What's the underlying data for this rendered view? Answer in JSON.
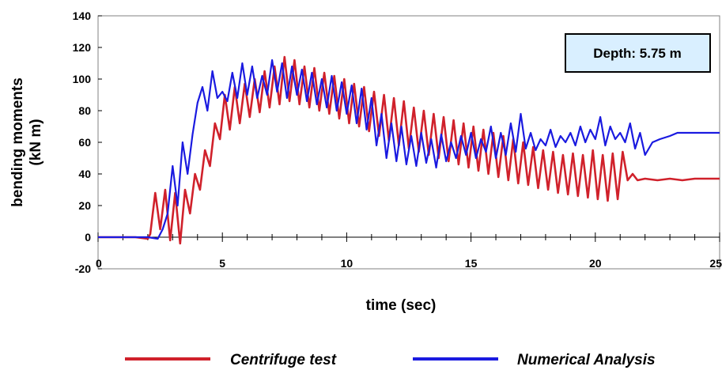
{
  "chart_data": {
    "type": "line",
    "title": "",
    "xlabel": "time (sec)",
    "ylabel_lines": [
      "bending moments",
      "(kN m)"
    ],
    "xlim": [
      0,
      25
    ],
    "ylim": [
      -20,
      140
    ],
    "xticks": [
      0,
      5,
      10,
      15,
      20,
      25
    ],
    "xtick_labels": [
      "0",
      "5",
      "10",
      "15",
      "20",
      "25"
    ],
    "yticks": [
      -20,
      0,
      20,
      40,
      60,
      80,
      100,
      120,
      140
    ],
    "ytick_labels": [
      "-20",
      "0",
      "20",
      "40",
      "60",
      "80",
      "100",
      "120",
      "140"
    ],
    "grid": false,
    "legend_position": "bottom",
    "annotation": "Depth: 5.75 m",
    "colors": {
      "annotation_bg": "#d9efff"
    },
    "series": [
      {
        "name": "Centrifuge test",
        "color": "#d0212b",
        "x": [
          0,
          0.5,
          1,
          1.5,
          2,
          2.1,
          2.3,
          2.5,
          2.7,
          2.9,
          3.1,
          3.3,
          3.5,
          3.7,
          3.9,
          4.1,
          4.3,
          4.5,
          4.7,
          4.9,
          5.1,
          5.3,
          5.5,
          5.7,
          5.9,
          6.1,
          6.3,
          6.5,
          6.7,
          6.9,
          7.1,
          7.3,
          7.5,
          7.7,
          7.9,
          8.1,
          8.3,
          8.5,
          8.7,
          8.9,
          9.1,
          9.3,
          9.5,
          9.7,
          9.9,
          10.1,
          10.3,
          10.5,
          10.7,
          10.9,
          11.1,
          11.3,
          11.5,
          11.7,
          11.9,
          12.1,
          12.3,
          12.5,
          12.7,
          12.9,
          13.1,
          13.3,
          13.5,
          13.7,
          13.9,
          14.1,
          14.3,
          14.5,
          14.7,
          14.9,
          15.1,
          15.3,
          15.5,
          15.7,
          15.9,
          16.1,
          16.3,
          16.5,
          16.7,
          16.9,
          17.1,
          17.3,
          17.5,
          17.7,
          17.9,
          18.1,
          18.3,
          18.5,
          18.7,
          18.9,
          19.1,
          19.3,
          19.5,
          19.7,
          19.9,
          20.1,
          20.3,
          20.5,
          20.7,
          20.9,
          21.1,
          21.3,
          21.5,
          21.7,
          22,
          22.5,
          23,
          23.5,
          24,
          24.5,
          25
        ],
        "y": [
          0,
          0,
          0,
          0,
          -1,
          2,
          28,
          5,
          30,
          -2,
          28,
          -4,
          30,
          15,
          40,
          30,
          55,
          45,
          72,
          62,
          90,
          68,
          95,
          72,
          97,
          76,
          100,
          79,
          105,
          82,
          108,
          84,
          114,
          86,
          112,
          84,
          108,
          82,
          107,
          80,
          104,
          78,
          102,
          75,
          100,
          72,
          97,
          70,
          95,
          67,
          92,
          64,
          90,
          61,
          88,
          58,
          86,
          56,
          82,
          54,
          80,
          52,
          78,
          50,
          76,
          48,
          74,
          46,
          72,
          44,
          70,
          42,
          68,
          40,
          66,
          38,
          64,
          36,
          62,
          34,
          60,
          33,
          57,
          31,
          55,
          30,
          54,
          28,
          52,
          27,
          53,
          26,
          52,
          25,
          55,
          24,
          52,
          23,
          53,
          24,
          54,
          36,
          40,
          36,
          37,
          36,
          37,
          36,
          37,
          37,
          37
        ]
      },
      {
        "name": "Numerical Analysis",
        "color": "#1a1ae0",
        "x": [
          0,
          0.5,
          1,
          1.5,
          2,
          2.4,
          2.6,
          2.8,
          3,
          3.2,
          3.4,
          3.6,
          3.8,
          4,
          4.2,
          4.4,
          4.6,
          4.8,
          5,
          5.2,
          5.4,
          5.6,
          5.8,
          6,
          6.2,
          6.4,
          6.6,
          6.8,
          7,
          7.2,
          7.4,
          7.6,
          7.8,
          8,
          8.2,
          8.4,
          8.6,
          8.8,
          9,
          9.2,
          9.4,
          9.6,
          9.8,
          10,
          10.2,
          10.4,
          10.6,
          10.8,
          11,
          11.2,
          11.4,
          11.6,
          11.8,
          12,
          12.2,
          12.4,
          12.6,
          12.8,
          13,
          13.2,
          13.4,
          13.6,
          13.8,
          14,
          14.2,
          14.4,
          14.6,
          14.8,
          15,
          15.2,
          15.4,
          15.6,
          15.8,
          16,
          16.2,
          16.4,
          16.6,
          16.8,
          17,
          17.2,
          17.4,
          17.6,
          17.8,
          18,
          18.2,
          18.4,
          18.6,
          18.8,
          19,
          19.2,
          19.4,
          19.6,
          19.8,
          20,
          20.2,
          20.4,
          20.6,
          20.8,
          21,
          21.2,
          21.4,
          21.6,
          21.8,
          22,
          22.3,
          22.6,
          23,
          23.3,
          23.6,
          24,
          24.5,
          25
        ],
        "y": [
          0,
          0,
          0,
          0,
          0,
          -1,
          5,
          15,
          45,
          20,
          60,
          40,
          65,
          85,
          95,
          80,
          105,
          88,
          92,
          86,
          104,
          88,
          110,
          90,
          108,
          88,
          102,
          90,
          112,
          92,
          110,
          88,
          108,
          90,
          106,
          86,
          104,
          84,
          100,
          82,
          102,
          80,
          98,
          78,
          96,
          72,
          94,
          68,
          88,
          58,
          78,
          50,
          72,
          48,
          70,
          46,
          64,
          45,
          66,
          47,
          62,
          44,
          65,
          48,
          60,
          50,
          64,
          52,
          66,
          50,
          62,
          54,
          70,
          50,
          66,
          52,
          72,
          54,
          78,
          56,
          66,
          55,
          62,
          58,
          68,
          57,
          64,
          60,
          66,
          58,
          70,
          60,
          68,
          62,
          76,
          58,
          70,
          62,
          66,
          60,
          72,
          56,
          66,
          52,
          60,
          62,
          64,
          66,
          66,
          66,
          66,
          66
        ]
      }
    ]
  }
}
